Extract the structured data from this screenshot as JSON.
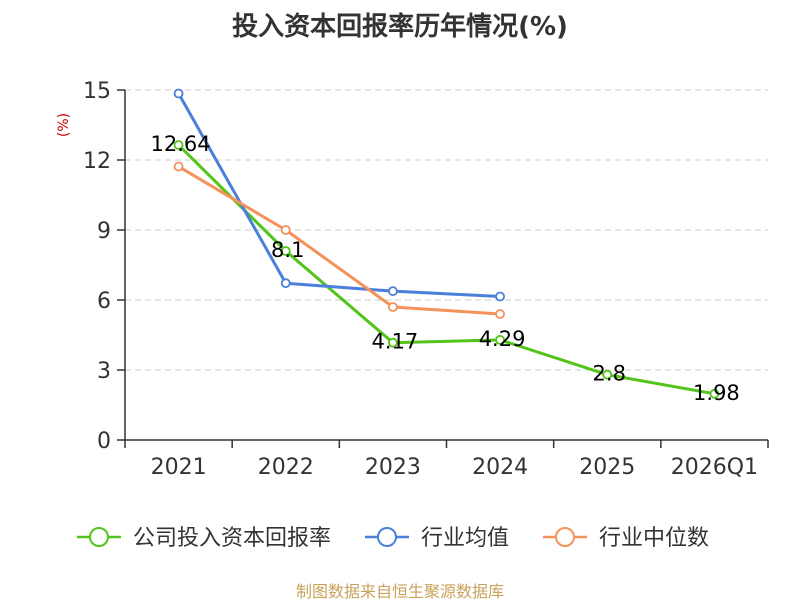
{
  "footer": "制图数据来自恒生聚源数据库",
  "chart_data": {
    "type": "line",
    "title": "投入资本回报率历年情况(%)",
    "ylabel": "(%)",
    "xlabel": "",
    "categories": [
      "2021",
      "2022",
      "2023",
      "2024",
      "2025",
      "2026Q1"
    ],
    "ylim": [
      0,
      15
    ],
    "yticks": [
      0,
      3,
      6,
      9,
      12,
      15
    ],
    "grid": true,
    "legend_position": "bottom",
    "series": [
      {
        "name": "公司投入资本回报率",
        "color": "#52c41a",
        "values": [
          12.64,
          8.1,
          4.17,
          4.29,
          2.8,
          1.98
        ],
        "labels": [
          "12.64",
          "8.1",
          "4.17",
          "4.29",
          "2.8",
          "1.98"
        ]
      },
      {
        "name": "行业均值",
        "color": "#4a7fdc",
        "values": [
          14.85,
          6.72,
          6.38,
          6.15,
          null,
          null
        ]
      },
      {
        "name": "行业中位数",
        "color": "#f5915a",
        "values": [
          11.72,
          9.0,
          5.7,
          5.4,
          null,
          null
        ]
      }
    ]
  }
}
